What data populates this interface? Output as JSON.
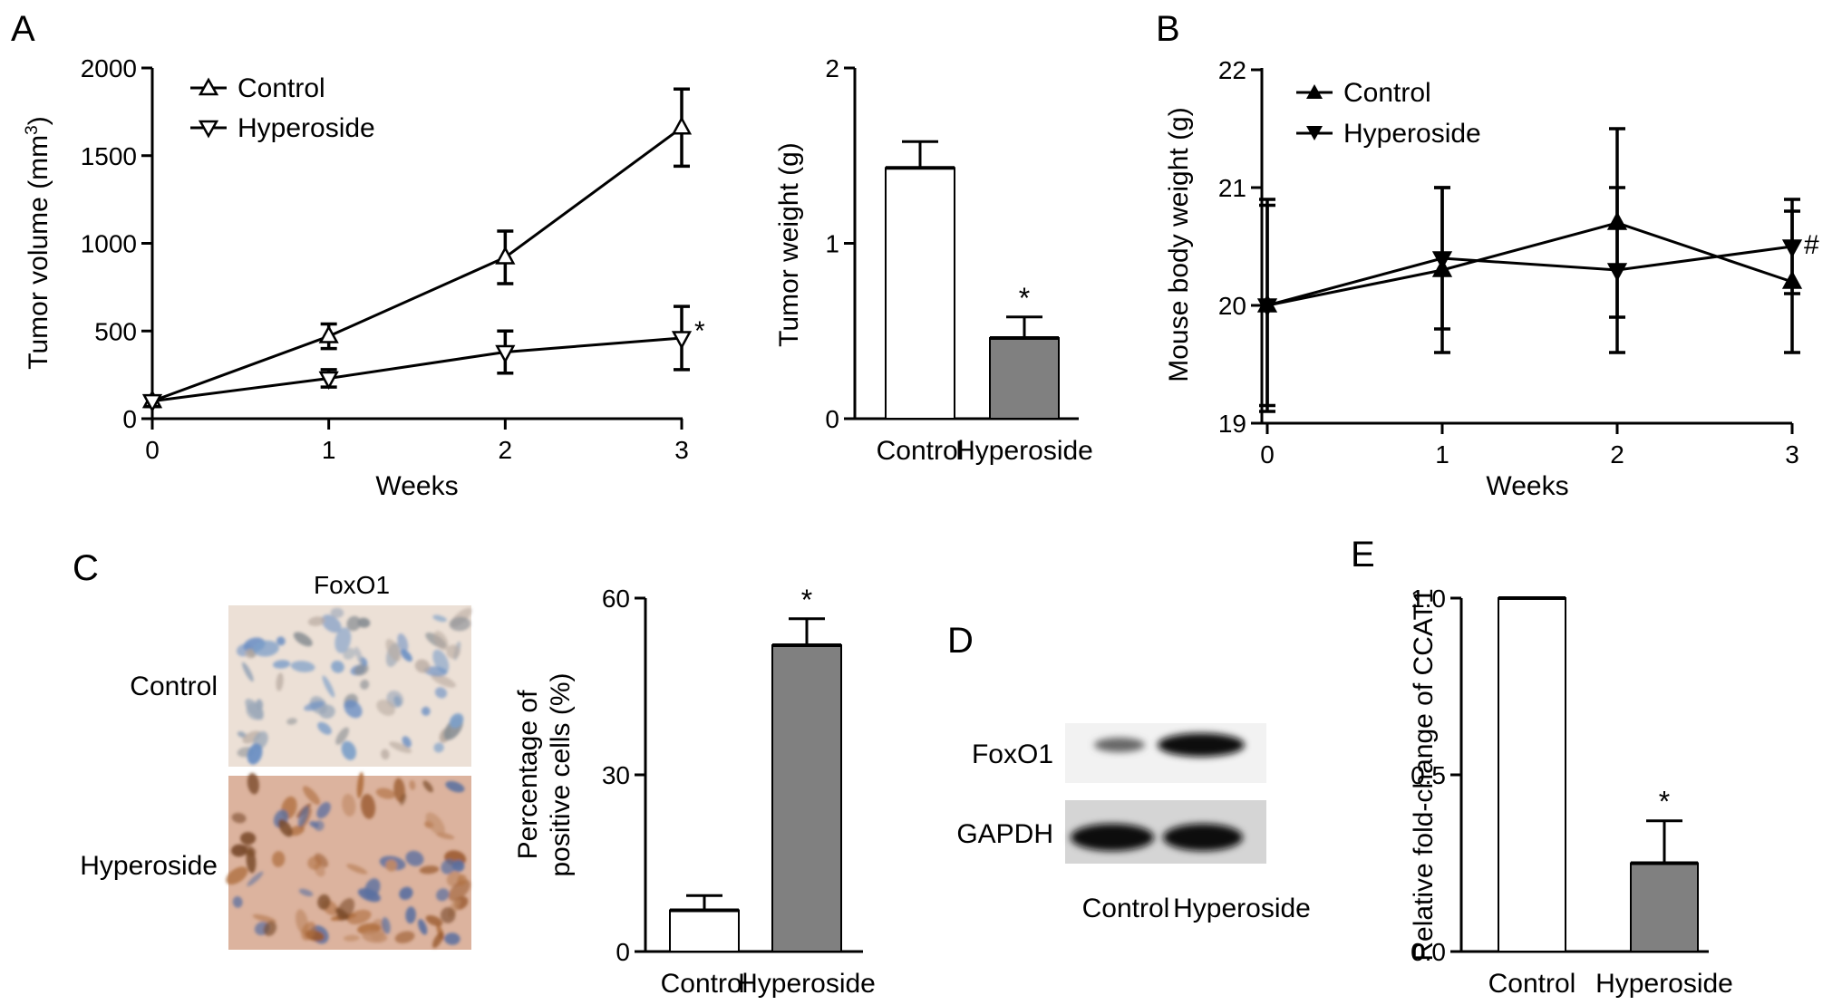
{
  "chart_data": [
    {
      "id": "A1",
      "type": "line",
      "panel_letter": "A",
      "xlabel": "Weeks",
      "ylabel_main": "Tumor volume (mm",
      "ylabel_sup": "3",
      "ylabel_tail": ")",
      "x": [
        0,
        1,
        2,
        3
      ],
      "xlim": [
        0,
        3
      ],
      "ylim": [
        0,
        2000
      ],
      "xticks": [
        "0",
        "1",
        "2",
        "3"
      ],
      "yticks": [
        "0",
        "500",
        "1000",
        "1500",
        "2000"
      ],
      "legend_position": "top-left",
      "significance": "*",
      "series": [
        {
          "name": "Control",
          "marker": "triangle-up",
          "values": [
            100,
            470,
            920,
            1660
          ],
          "errors": [
            30,
            70,
            150,
            220
          ]
        },
        {
          "name": "Hyperoside",
          "marker": "triangle-down",
          "values": [
            100,
            230,
            380,
            460
          ],
          "errors": [
            30,
            50,
            120,
            180
          ]
        }
      ]
    },
    {
      "id": "A2",
      "type": "bar",
      "ylabel": "Tumor weight (g)",
      "categories": [
        "Control",
        "Hyperoside"
      ],
      "values": [
        1.43,
        0.46
      ],
      "errors": [
        0.15,
        0.12
      ],
      "colors": [
        "#ffffff",
        "#808080"
      ],
      "ylim": [
        0,
        2
      ],
      "yticks": [
        "0",
        "1",
        "2"
      ],
      "significance": "*"
    },
    {
      "id": "B",
      "type": "line",
      "panel_letter": "B",
      "xlabel": "Weeks",
      "ylabel": "Mouse body weight (g)",
      "x": [
        0,
        1,
        2,
        3
      ],
      "xlim": [
        0,
        3
      ],
      "ylim": [
        19,
        22
      ],
      "xticks": [
        "0",
        "1",
        "2",
        "3"
      ],
      "yticks": [
        "19",
        "20",
        "21",
        "22"
      ],
      "legend_position": "top-left",
      "significance": "#",
      "series": [
        {
          "name": "Control",
          "marker": "triangle-up-filled",
          "values": [
            20.0,
            20.3,
            20.7,
            20.2
          ],
          "errors": [
            0.85,
            0.7,
            0.8,
            0.6
          ]
        },
        {
          "name": "Hyperoside",
          "marker": "triangle-down-filled",
          "values": [
            20.0,
            20.4,
            20.3,
            20.5
          ],
          "errors": [
            0.9,
            0.6,
            0.7,
            0.4
          ]
        }
      ]
    },
    {
      "id": "C",
      "type": "bar",
      "panel_letter": "C",
      "ylabel_line1": "Percentage of",
      "ylabel_line2": "positive cells (%)",
      "categories": [
        "Control",
        "Hyperoside"
      ],
      "values": [
        7,
        52
      ],
      "errors": [
        2.5,
        4.5
      ],
      "colors": [
        "#ffffff",
        "#808080"
      ],
      "ylim": [
        0,
        60
      ],
      "yticks": [
        "0",
        "30",
        "60"
      ],
      "significance": "*"
    },
    {
      "id": "E",
      "type": "bar",
      "panel_letter": "E",
      "ylabel": "Relative fold-change of CCAT1",
      "categories": [
        "Control",
        "Hyperoside"
      ],
      "values": [
        1.0,
        0.25
      ],
      "errors": [
        0,
        0.12
      ],
      "colors": [
        "#ffffff",
        "#808080"
      ],
      "ylim": [
        0,
        1.0
      ],
      "yticks": [
        "0.0",
        "0.5",
        "1.0"
      ],
      "significance": "*"
    }
  ],
  "ihc": {
    "title": "FoxO1",
    "rows": [
      "Control",
      "Hyperoside"
    ]
  },
  "blot": {
    "panel_letter": "D",
    "rows": [
      "FoxO1",
      "GAPDH"
    ],
    "lanes": [
      "Control",
      "Hyperoside"
    ]
  }
}
